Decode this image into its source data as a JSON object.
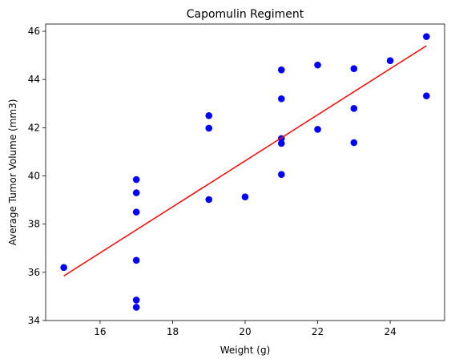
{
  "chart_data": {
    "type": "scatter",
    "title": "Capomulin Regiment",
    "xlabel": "Weight (g)",
    "ylabel": "Average Tumor Volume (mm3)",
    "xlim": [
      14.5,
      25.5
    ],
    "ylim": [
      34,
      46.3
    ],
    "x_ticks": [
      16,
      18,
      20,
      22,
      24
    ],
    "y_ticks": [
      34,
      36,
      38,
      40,
      42,
      44,
      46
    ],
    "grid": false,
    "points": [
      {
        "x": 15,
        "y": 36.2
      },
      {
        "x": 17,
        "y": 39.85
      },
      {
        "x": 17,
        "y": 39.3
      },
      {
        "x": 17,
        "y": 38.5
      },
      {
        "x": 17,
        "y": 36.5
      },
      {
        "x": 17,
        "y": 34.85
      },
      {
        "x": 17,
        "y": 34.55
      },
      {
        "x": 19,
        "y": 42.5
      },
      {
        "x": 19,
        "y": 41.98
      },
      {
        "x": 19,
        "y": 39.02
      },
      {
        "x": 20,
        "y": 39.13
      },
      {
        "x": 21,
        "y": 44.4
      },
      {
        "x": 21,
        "y": 43.2
      },
      {
        "x": 21,
        "y": 41.55
      },
      {
        "x": 21,
        "y": 41.35
      },
      {
        "x": 21,
        "y": 40.06
      },
      {
        "x": 22,
        "y": 44.6
      },
      {
        "x": 22,
        "y": 41.93
      },
      {
        "x": 23,
        "y": 44.45
      },
      {
        "x": 23,
        "y": 42.8
      },
      {
        "x": 23,
        "y": 41.38
      },
      {
        "x": 24,
        "y": 44.78
      },
      {
        "x": 25,
        "y": 45.78
      },
      {
        "x": 25,
        "y": 43.32
      }
    ],
    "regression_line": {
      "x": [
        15,
        25
      ],
      "y": [
        35.85,
        45.4
      ]
    },
    "colors": {
      "points": "#0000ff",
      "line": "#ff0000"
    }
  }
}
